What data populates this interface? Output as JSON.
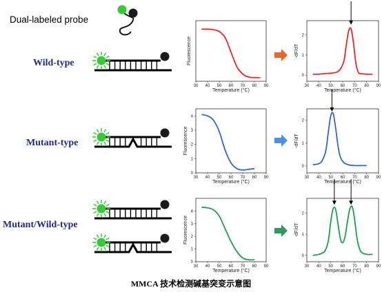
{
  "header": {
    "probe_label": "Dual-labeled probe"
  },
  "rows": [
    {
      "label": "Wild-type"
    },
    {
      "label": "Mutant-type"
    },
    {
      "label": "Mutant/Wild-type"
    }
  ],
  "caption": "MMCA 技术检测碱基突变示意图",
  "colors": {
    "row_label": "#1f2b86",
    "fluor": "#33cc33",
    "quencher": "#1a1a1a",
    "wild": "#e8262a",
    "mutant": "#3366cc",
    "mixed": "#1e9e4a",
    "arrow_wild": "#e8682b",
    "arrow_mutant": "#4d8fe8",
    "arrow_mixed": "#2e9a5e"
  },
  "chart_data": [
    {
      "type": "line",
      "row": "Wild-type",
      "kind": "fluorescence",
      "color": "#e8262a",
      "xlabel": "Temperature (°C)",
      "ylabel": "Fluorescence",
      "xticks": [
        30,
        40,
        50,
        60,
        70,
        80,
        90
      ],
      "yticks": [],
      "xlim": [
        30,
        90
      ],
      "ylim": [
        0,
        5
      ],
      "x": [
        35,
        40,
        45,
        50,
        55,
        60,
        65,
        70,
        75,
        80,
        85
      ],
      "y": [
        4.3,
        4.3,
        4.25,
        4.1,
        3.6,
        2.4,
        1.2,
        0.6,
        0.35,
        0.3,
        0.3
      ]
    },
    {
      "type": "line",
      "row": "Wild-type",
      "kind": "derivative",
      "color": "#e8262a",
      "xlabel": "Temperature (°C)",
      "ylabel": "-dF/dT",
      "xticks": [
        30,
        40,
        50,
        60,
        70,
        80,
        90
      ],
      "yticks": [
        0,
        1,
        2
      ],
      "xlim": [
        30,
        90
      ],
      "ylim": [
        -0.3,
        2.7
      ],
      "x": [
        35,
        40,
        45,
        50,
        55,
        58,
        61,
        63,
        65,
        67,
        69,
        71,
        73,
        75,
        80,
        85
      ],
      "y": [
        0.05,
        0.05,
        0.08,
        0.1,
        0.15,
        0.3,
        0.7,
        1.5,
        2.2,
        2.3,
        1.6,
        0.6,
        0.15,
        0.08,
        0.05,
        0.05
      ],
      "peaks": [
        67
      ]
    },
    {
      "type": "line",
      "row": "Mutant-type",
      "kind": "fluorescence",
      "color": "#3366cc",
      "xlabel": "Temperature (°C)",
      "ylabel": "Fluorescence",
      "xticks": [
        30,
        40,
        50,
        60,
        70,
        80,
        90
      ],
      "yticks": [
        0,
        1,
        2,
        3,
        4
      ],
      "xlim": [
        30,
        90
      ],
      "ylim": [
        0,
        4.5
      ],
      "x": [
        35,
        40,
        45,
        50,
        55,
        60,
        65,
        70,
        75,
        80
      ],
      "y": [
        4.1,
        4.0,
        3.7,
        2.9,
        1.6,
        0.7,
        0.3,
        0.2,
        0.25,
        0.3
      ]
    },
    {
      "type": "line",
      "row": "Mutant-type",
      "kind": "derivative",
      "color": "#3366cc",
      "xlabel": "Temperature (°C)",
      "ylabel": "-dF/dT",
      "xticks": [
        30,
        40,
        50,
        60,
        70,
        80,
        90
      ],
      "yticks": [
        0,
        1,
        2
      ],
      "xlim": [
        30,
        90
      ],
      "ylim": [
        -0.3,
        2.5
      ],
      "x": [
        35,
        40,
        43,
        46,
        48,
        50,
        52,
        54,
        56,
        58,
        61,
        65,
        70,
        75,
        80
      ],
      "y": [
        0.05,
        0.1,
        0.25,
        0.7,
        1.5,
        2.2,
        2.3,
        1.7,
        0.9,
        0.4,
        0.15,
        0.05,
        0.02,
        0.02,
        0.02
      ],
      "peaks": [
        51
      ]
    },
    {
      "type": "line",
      "row": "Mutant/Wild-type",
      "kind": "fluorescence",
      "color": "#1e9e4a",
      "xlabel": "Temperature (°C)",
      "ylabel": "Fluorescence",
      "xticks": [
        30,
        40,
        50,
        60,
        70,
        80,
        90
      ],
      "yticks": [
        0,
        1,
        2,
        3,
        4
      ],
      "xlim": [
        30,
        90
      ],
      "ylim": [
        0,
        5
      ],
      "x": [
        35,
        40,
        45,
        50,
        55,
        60,
        65,
        70,
        75,
        80
      ],
      "y": [
        4.3,
        4.25,
        4.1,
        3.6,
        2.6,
        1.6,
        0.8,
        0.3,
        0.15,
        0.15
      ]
    },
    {
      "type": "line",
      "row": "Mutant/Wild-type",
      "kind": "derivative",
      "color": "#1e9e4a",
      "xlabel": "Temperature (°C)",
      "ylabel": "-dF/dT",
      "xticks": [
        30,
        40,
        50,
        60,
        70,
        80,
        90
      ],
      "yticks": [
        0,
        1,
        2
      ],
      "xlim": [
        30,
        90
      ],
      "ylim": [
        -0.3,
        2.7
      ],
      "x": [
        35,
        40,
        45,
        48,
        50,
        52,
        54,
        56,
        58,
        60,
        62,
        64,
        66,
        68,
        70,
        72,
        75,
        80,
        85
      ],
      "y": [
        0.0,
        0.05,
        0.2,
        0.7,
        1.6,
        2.2,
        2.2,
        1.5,
        0.8,
        0.6,
        0.9,
        1.6,
        2.2,
        2.3,
        1.7,
        0.8,
        0.2,
        0.05,
        0.05
      ],
      "peaks": [
        53,
        67
      ]
    }
  ]
}
